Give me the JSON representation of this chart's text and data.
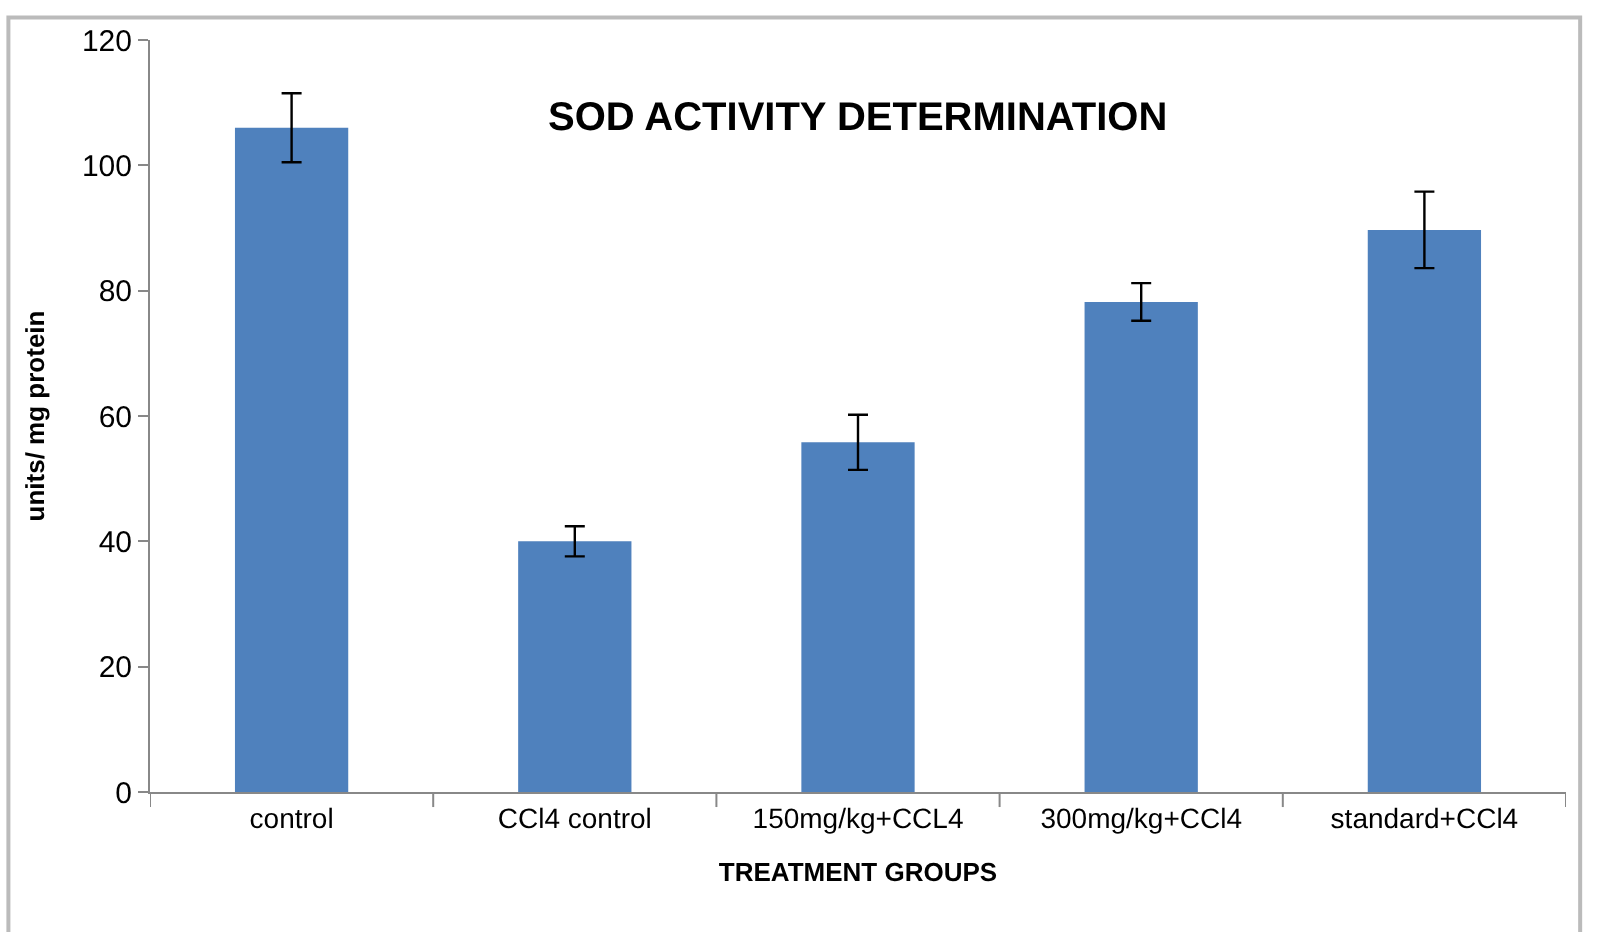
{
  "chart_data": {
    "type": "bar",
    "title": "SOD ACTIVITY DETERMINATION",
    "xlabel": "TREATMENT GROUPS",
    "ylabel": "units/ mg protein",
    "categories": [
      "control",
      "CCl4 control",
      "150mg/kg+CCL4",
      "300mg/kg+CCl4",
      "standard+CCl4"
    ],
    "values": [
      106,
      40,
      55.8,
      78.2,
      89.7
    ],
    "errors": [
      5.5,
      2.4,
      4.4,
      3.0,
      6.1
    ],
    "color": "#4f81bd",
    "ylim": [
      0,
      120
    ],
    "yticks": [
      0,
      20,
      40,
      60,
      80,
      100,
      120
    ]
  }
}
